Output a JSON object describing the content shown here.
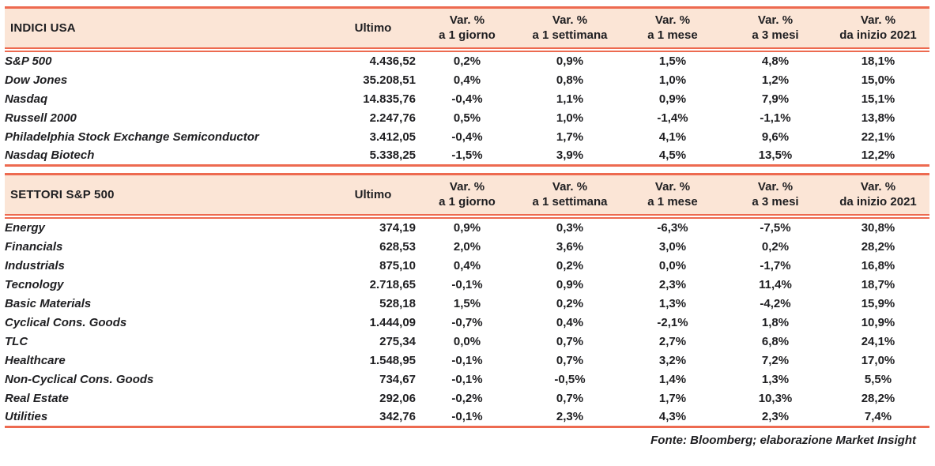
{
  "colors": {
    "accent_line": "#ED6A50",
    "header_bg": "#FBE5D6",
    "text": "#1E1E21"
  },
  "footer": "Fonte: Bloomberg; elaborazione Market Insight",
  "tables": [
    {
      "title": "INDICI USA",
      "ultimo_label": "Ultimo",
      "var_headers": [
        {
          "line1": "Var. %",
          "line2": "a 1 giorno"
        },
        {
          "line1": "Var. %",
          "line2": "a 1 settimana"
        },
        {
          "line1": "Var. %",
          "line2": "a 1 mese"
        },
        {
          "line1": "Var. %",
          "line2": "a 3 mesi"
        },
        {
          "line1": "Var. %",
          "line2": "da inizio 2021"
        }
      ],
      "rows": [
        {
          "name": "S&P 500",
          "ultimo": "4.436,52",
          "vars": [
            "0,2%",
            "0,9%",
            "1,5%",
            "4,8%",
            "18,1%"
          ]
        },
        {
          "name": "Dow Jones",
          "ultimo": "35.208,51",
          "vars": [
            "0,4%",
            "0,8%",
            "1,0%",
            "1,2%",
            "15,0%"
          ]
        },
        {
          "name": "Nasdaq",
          "ultimo": "14.835,76",
          "vars": [
            "-0,4%",
            "1,1%",
            "0,9%",
            "7,9%",
            "15,1%"
          ]
        },
        {
          "name": "Russell 2000",
          "ultimo": "2.247,76",
          "vars": [
            "0,5%",
            "1,0%",
            "-1,4%",
            "-1,1%",
            "13,8%"
          ]
        },
        {
          "name": "Philadelphia Stock Exchange Semiconductor",
          "ultimo": "3.412,05",
          "vars": [
            "-0,4%",
            "1,7%",
            "4,1%",
            "9,6%",
            "22,1%"
          ]
        },
        {
          "name": "Nasdaq Biotech",
          "ultimo": "5.338,25",
          "vars": [
            "-1,5%",
            "3,9%",
            "4,5%",
            "13,5%",
            "12,2%"
          ]
        }
      ]
    },
    {
      "title": "SETTORI S&P 500",
      "ultimo_label": "Ultimo",
      "var_headers": [
        {
          "line1": "Var. %",
          "line2": "a 1 giorno"
        },
        {
          "line1": "Var. %",
          "line2": "a 1 settimana"
        },
        {
          "line1": "Var. %",
          "line2": "a 1 mese"
        },
        {
          "line1": "Var. %",
          "line2": "a 3 mesi"
        },
        {
          "line1": "Var. %",
          "line2": "da inizio 2021"
        }
      ],
      "rows": [
        {
          "name": "Energy",
          "ultimo": "374,19",
          "vars": [
            "0,9%",
            "0,3%",
            "-6,3%",
            "-7,5%",
            "30,8%"
          ]
        },
        {
          "name": "Financials",
          "ultimo": "628,53",
          "vars": [
            "2,0%",
            "3,6%",
            "3,0%",
            "0,2%",
            "28,2%"
          ]
        },
        {
          "name": "Industrials",
          "ultimo": "875,10",
          "vars": [
            "0,4%",
            "0,2%",
            "0,0%",
            "-1,7%",
            "16,8%"
          ]
        },
        {
          "name": "Tecnology",
          "ultimo": "2.718,65",
          "vars": [
            "-0,1%",
            "0,9%",
            "2,3%",
            "11,4%",
            "18,7%"
          ]
        },
        {
          "name": "Basic Materials",
          "ultimo": "528,18",
          "vars": [
            "1,5%",
            "0,2%",
            "1,3%",
            "-4,2%",
            "15,9%"
          ]
        },
        {
          "name": "Cyclical Cons. Goods",
          "ultimo": "1.444,09",
          "vars": [
            "-0,7%",
            "0,4%",
            "-2,1%",
            "1,8%",
            "10,9%"
          ]
        },
        {
          "name": "TLC",
          "ultimo": "275,34",
          "vars": [
            "0,0%",
            "0,7%",
            "2,7%",
            "6,8%",
            "24,1%"
          ]
        },
        {
          "name": "Healthcare",
          "ultimo": "1.548,95",
          "vars": [
            "-0,1%",
            "0,7%",
            "3,2%",
            "7,2%",
            "17,0%"
          ]
        },
        {
          "name": "Non-Cyclical Cons. Goods",
          "ultimo": "734,67",
          "vars": [
            "-0,1%",
            "-0,5%",
            "1,4%",
            "1,3%",
            "5,5%"
          ]
        },
        {
          "name": "Real Estate",
          "ultimo": "292,06",
          "vars": [
            "-0,2%",
            "0,7%",
            "1,7%",
            "10,3%",
            "28,2%"
          ]
        },
        {
          "name": "Utilities",
          "ultimo": "342,76",
          "vars": [
            "-0,1%",
            "2,3%",
            "4,3%",
            "2,3%",
            "7,4%"
          ]
        }
      ]
    }
  ]
}
